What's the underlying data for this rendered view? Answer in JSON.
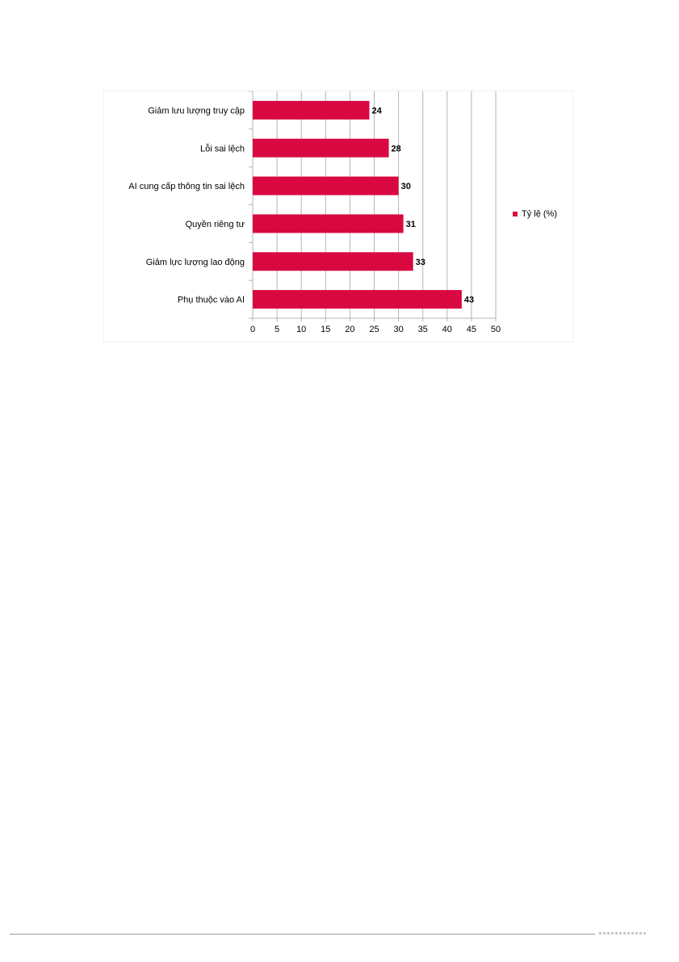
{
  "chart_data": {
    "type": "bar",
    "orientation": "horizontal",
    "categories": [
      "Giảm lưu lượng truy cập",
      "Lỗi sai lệch",
      "AI cung cấp thông tin sai lệch",
      "Quyền riêng tư",
      "Giảm lực lượng lao động",
      "Phụ thuộc vào AI"
    ],
    "series": [
      {
        "name": "Tỷ lệ (%)",
        "values": [
          24,
          28,
          30,
          31,
          33,
          43
        ],
        "color": "#d90840"
      }
    ],
    "xlim": [
      0,
      50
    ],
    "x_ticks": [
      0,
      5,
      10,
      15,
      20,
      25,
      30,
      35,
      40,
      45,
      50
    ],
    "grid": "vertical",
    "data_labels": true,
    "legend": "right",
    "title": "",
    "xlabel": "",
    "ylabel": ""
  }
}
